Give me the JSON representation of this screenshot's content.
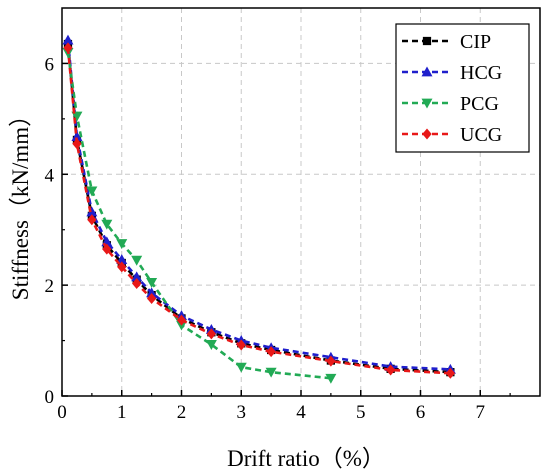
{
  "chart_data": {
    "type": "line",
    "title": "",
    "xlabel": "Drift ratio（%）",
    "ylabel": "Stiffness（kN/mm）",
    "xlim": [
      0,
      8
    ],
    "ylim": [
      0,
      7
    ],
    "xticks": [
      "0",
      "1",
      "2",
      "3",
      "4",
      "5",
      "6",
      "7"
    ],
    "yticks": [
      "0",
      "2",
      "4",
      "6"
    ],
    "grid": true,
    "legend_position": "top-right",
    "series": [
      {
        "name": "CIP",
        "color": "#000000",
        "marker": "square",
        "x": [
          0.1,
          0.25,
          0.5,
          0.75,
          1.0,
          1.25,
          1.5,
          2.0,
          2.5,
          3.0,
          3.5,
          4.5,
          5.5,
          6.5
        ],
        "y": [
          6.35,
          4.62,
          3.25,
          2.72,
          2.4,
          2.1,
          1.82,
          1.4,
          1.15,
          0.95,
          0.83,
          0.64,
          0.49,
          0.43
        ]
      },
      {
        "name": "HCG",
        "color": "#1f1fcc",
        "marker": "triangle-up",
        "x": [
          0.1,
          0.25,
          0.5,
          0.75,
          1.0,
          1.25,
          1.5,
          2.0,
          2.5,
          3.0,
          3.5,
          4.5,
          5.5,
          6.5
        ],
        "y": [
          6.42,
          4.68,
          3.32,
          2.78,
          2.46,
          2.15,
          1.86,
          1.45,
          1.2,
          1.0,
          0.87,
          0.7,
          0.53,
          0.48
        ]
      },
      {
        "name": "PCG",
        "color": "#22aa55",
        "marker": "triangle-down",
        "x": [
          0.1,
          0.25,
          0.5,
          0.75,
          1.0,
          1.25,
          1.5,
          2.0,
          2.5,
          3.0,
          3.5,
          4.5
        ],
        "y": [
          6.2,
          5.05,
          3.7,
          3.1,
          2.75,
          2.45,
          2.05,
          1.28,
          0.93,
          0.52,
          0.43,
          0.32
        ]
      },
      {
        "name": "UCG",
        "color": "#e81818",
        "marker": "diamond",
        "x": [
          0.1,
          0.25,
          0.5,
          0.75,
          1.0,
          1.25,
          1.5,
          2.0,
          2.5,
          3.0,
          3.5,
          4.5,
          5.5,
          6.5
        ],
        "y": [
          6.28,
          4.55,
          3.18,
          2.65,
          2.33,
          2.03,
          1.76,
          1.37,
          1.12,
          0.92,
          0.8,
          0.63,
          0.47,
          0.41
        ]
      }
    ]
  }
}
